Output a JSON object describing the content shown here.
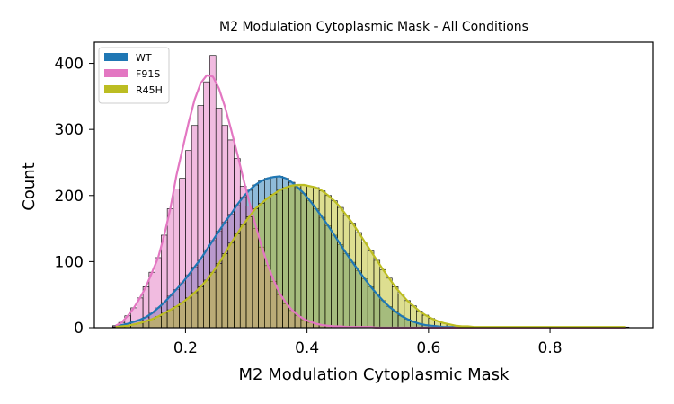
{
  "chart_data": {
    "type": "histogram",
    "title": "M2 Modulation Cytoplasmic Mask - All Conditions",
    "xlabel": "M2 Modulation Cytoplasmic Mask",
    "ylabel": "Count",
    "xlim": [
      0.05,
      0.97
    ],
    "ylim": [
      0,
      432
    ],
    "xticks": [
      0.2,
      0.4,
      0.6,
      0.8
    ],
    "xtick_labels": [
      "0.2",
      "0.4",
      "0.6",
      "0.8"
    ],
    "yticks": [
      0,
      100,
      200,
      300,
      400
    ],
    "ytick_labels": [
      "0",
      "100",
      "200",
      "300",
      "400"
    ],
    "grid": false,
    "legend_position": "top-left",
    "bin_start": 0.08,
    "bin_width": 0.01,
    "series": [
      {
        "name": "WT",
        "color": "#1f77b4",
        "values": [
          2,
          4,
          6,
          9,
          12,
          16,
          22,
          30,
          38,
          48,
          58,
          68,
          80,
          92,
          104,
          118,
          132,
          146,
          160,
          172,
          186,
          198,
          208,
          216,
          222,
          226,
          228,
          229,
          226,
          220,
          212,
          203,
          192,
          180,
          167,
          154,
          140,
          126,
          112,
          99,
          86,
          74,
          62,
          51,
          41,
          32,
          25,
          18,
          13,
          9,
          6,
          4,
          3,
          2,
          1,
          1,
          1,
          0,
          0,
          0,
          0,
          0,
          0,
          0,
          0,
          0,
          0,
          0,
          0,
          0,
          0,
          0,
          0,
          0,
          0,
          0,
          0,
          0,
          0,
          0,
          0,
          0,
          0,
          0,
          0
        ],
        "kde": [
          2,
          4,
          6,
          9,
          12,
          16,
          22,
          30,
          38,
          48,
          58,
          68,
          80,
          92,
          104,
          118,
          132,
          146,
          160,
          172,
          186,
          198,
          208,
          216,
          222,
          226,
          228,
          229,
          226,
          220,
          212,
          203,
          192,
          180,
          167,
          154,
          140,
          126,
          112,
          99,
          86,
          74,
          62,
          51,
          41,
          32,
          25,
          18,
          13,
          9,
          6,
          4,
          3,
          2,
          1,
          1,
          1,
          0,
          0,
          0,
          0,
          0,
          0,
          0,
          0,
          0,
          0,
          0,
          0,
          0,
          0,
          0,
          0,
          0,
          0,
          0,
          0,
          0,
          0,
          0,
          0,
          0,
          0,
          0,
          0
        ]
      },
      {
        "name": "F91S",
        "color": "#e377c2",
        "values": [
          3,
          8,
          18,
          30,
          45,
          62,
          84,
          106,
          140,
          180,
          210,
          226,
          268,
          306,
          336,
          372,
          412,
          332,
          306,
          284,
          256,
          214,
          184,
          150,
          122,
          94,
          70,
          50,
          36,
          26,
          18,
          12,
          8,
          6,
          4,
          3,
          2,
          2,
          1,
          1,
          1,
          1,
          1,
          0,
          0,
          0,
          0,
          0,
          0,
          0,
          0,
          0,
          0,
          0,
          0,
          0,
          0,
          0,
          0,
          0,
          0,
          0,
          0,
          0,
          0,
          0,
          0,
          0,
          0,
          0,
          0,
          0,
          0,
          0,
          0,
          0,
          0,
          0,
          0,
          0,
          0,
          0,
          0,
          0,
          0
        ],
        "kde": [
          3,
          8,
          18,
          30,
          45,
          62,
          84,
          106,
          140,
          180,
          230,
          270,
          310,
          345,
          370,
          382,
          380,
          362,
          334,
          300,
          264,
          226,
          190,
          156,
          124,
          96,
          72,
          52,
          38,
          27,
          19,
          13,
          9,
          6,
          4,
          3,
          2,
          2,
          1,
          1,
          1,
          1,
          1,
          0,
          0,
          0,
          0,
          0,
          0,
          0,
          0,
          0,
          0,
          0,
          0,
          0,
          0,
          0,
          0,
          0,
          0,
          0,
          0,
          0,
          0,
          0,
          0,
          0,
          0,
          0,
          0,
          0,
          0,
          0,
          0,
          0,
          0,
          0,
          0,
          0,
          0,
          0,
          0,
          0,
          0
        ]
      },
      {
        "name": "R45H",
        "color": "#bcbd22",
        "values": [
          1,
          2,
          3,
          5,
          7,
          10,
          13,
          17,
          22,
          27,
          32,
          38,
          45,
          53,
          62,
          72,
          84,
          97,
          112,
          128,
          142,
          156,
          168,
          180,
          188,
          196,
          202,
          208,
          212,
          215,
          216,
          216,
          214,
          212,
          207,
          200,
          192,
          182,
          170,
          158,
          144,
          130,
          116,
          102,
          88,
          75,
          62,
          51,
          41,
          33,
          25,
          19,
          14,
          10,
          7,
          5,
          3,
          2,
          2,
          1,
          1,
          1,
          1,
          1,
          1,
          1,
          1,
          1,
          1,
          1,
          1,
          1,
          1,
          1,
          1,
          1,
          1,
          1,
          1,
          1,
          1,
          1,
          1,
          1,
          1
        ],
        "kde": [
          1,
          2,
          3,
          5,
          7,
          10,
          13,
          17,
          22,
          27,
          32,
          38,
          45,
          53,
          62,
          72,
          84,
          97,
          112,
          128,
          142,
          156,
          168,
          180,
          188,
          196,
          202,
          208,
          212,
          215,
          216,
          216,
          214,
          212,
          207,
          200,
          192,
          182,
          170,
          158,
          144,
          130,
          116,
          102,
          88,
          75,
          62,
          51,
          41,
          33,
          25,
          19,
          14,
          10,
          7,
          5,
          3,
          2,
          2,
          1,
          1,
          1,
          1,
          1,
          1,
          1,
          1,
          1,
          1,
          1,
          1,
          1,
          1,
          1,
          1,
          1,
          1,
          1,
          1,
          1,
          1,
          1,
          1,
          1,
          1
        ]
      }
    ]
  }
}
